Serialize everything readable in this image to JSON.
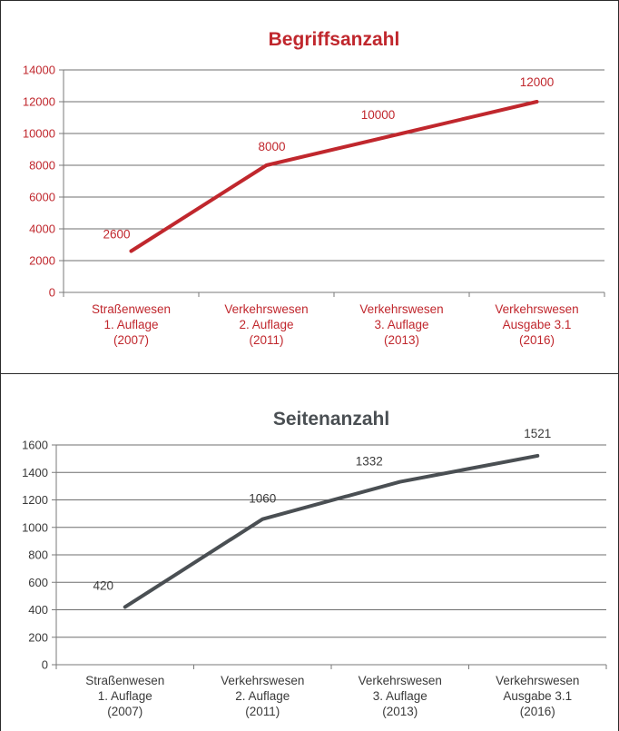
{
  "chart_data": [
    {
      "type": "line",
      "title": "Begriffsanzahl",
      "color": "#c0272d",
      "categories": [
        [
          "Straßenwesen",
          "1. Auflage",
          "(2007)"
        ],
        [
          "Verkehrswesen",
          "2. Auflage",
          "(2011)"
        ],
        [
          "Verkehrswesen",
          "3. Auflage",
          "(2013)"
        ],
        [
          "Verkehrswesen",
          "Ausgabe 3.1",
          "(2016)"
        ]
      ],
      "values": [
        2600,
        8000,
        10000,
        12000
      ],
      "data_labels": [
        "2600",
        "8000",
        "10000",
        "12000"
      ],
      "yticks": [
        "0",
        "2000",
        "4000",
        "6000",
        "8000",
        "10000",
        "12000",
        "14000"
      ],
      "ylim": [
        0,
        14000
      ],
      "grid": true
    },
    {
      "type": "line",
      "title": "Seitenanzahl",
      "color": "#4a4f53",
      "categories": [
        [
          "Straßenwesen",
          "1. Auflage",
          "(2007)"
        ],
        [
          "Verkehrswesen",
          "2. Auflage",
          "(2011)"
        ],
        [
          "Verkehrswesen",
          "3. Auflage",
          "(2013)"
        ],
        [
          "Verkehrswesen",
          "Ausgabe 3.1",
          "(2016)"
        ]
      ],
      "values": [
        420,
        1060,
        1332,
        1521
      ],
      "data_labels": [
        "420",
        "1060",
        "1332",
        "1521"
      ],
      "yticks": [
        "0",
        "200",
        "400",
        "600",
        "800",
        "1000",
        "1200",
        "1400",
        "1600"
      ],
      "ylim": [
        0,
        1600
      ],
      "grid": true
    }
  ]
}
